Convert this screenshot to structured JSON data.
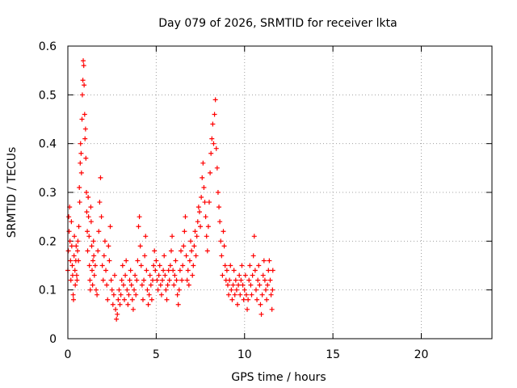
{
  "chart_data": {
    "type": "scatter",
    "title": "Day 079 of 2026, SRMTID for receiver lkta",
    "xlabel": "GPS time / hours",
    "ylabel": "SRMTID / TECUs",
    "xlim": [
      0,
      24
    ],
    "ylim": [
      0,
      0.6
    ],
    "xticks": [
      0,
      5,
      10,
      15,
      20
    ],
    "xtick_labels": [
      "0",
      "5",
      "10",
      "15",
      "20"
    ],
    "yticks": [
      0,
      0.1,
      0.2,
      0.3,
      0.4,
      0.5,
      0.6
    ],
    "ytick_labels": [
      "0",
      "0.1",
      "0.2",
      "0.3",
      "0.4",
      "0.5",
      "0.6"
    ],
    "grid": true,
    "marker": "+",
    "series": [
      {
        "name": "SRMTID",
        "color": "#ff0000",
        "points": [
          [
            0.0,
            0.14
          ],
          [
            0.03,
            0.18
          ],
          [
            0.05,
            0.25
          ],
          [
            0.07,
            0.22
          ],
          [
            0.1,
            0.27
          ],
          [
            0.12,
            0.2
          ],
          [
            0.15,
            0.16
          ],
          [
            0.17,
            0.12
          ],
          [
            0.2,
            0.24
          ],
          [
            0.22,
            0.19
          ],
          [
            0.25,
            0.15
          ],
          [
            0.27,
            0.13
          ],
          [
            0.3,
            0.09
          ],
          [
            0.32,
            0.08
          ],
          [
            0.35,
            0.17
          ],
          [
            0.37,
            0.21
          ],
          [
            0.4,
            0.14
          ],
          [
            0.42,
            0.11
          ],
          [
            0.45,
            0.16
          ],
          [
            0.47,
            0.19
          ],
          [
            0.5,
            0.13
          ],
          [
            0.52,
            0.12
          ],
          [
            0.55,
            0.18
          ],
          [
            0.57,
            0.2
          ],
          [
            0.6,
            0.16
          ],
          [
            0.62,
            0.23
          ],
          [
            0.65,
            0.31
          ],
          [
            0.67,
            0.28
          ],
          [
            0.7,
            0.36
          ],
          [
            0.72,
            0.4
          ],
          [
            0.75,
            0.38
          ],
          [
            0.77,
            0.34
          ],
          [
            0.8,
            0.45
          ],
          [
            0.82,
            0.5
          ],
          [
            0.85,
            0.53
          ],
          [
            0.87,
            0.57
          ],
          [
            0.9,
            0.56
          ],
          [
            0.92,
            0.52
          ],
          [
            0.95,
            0.46
          ],
          [
            0.97,
            0.41
          ],
          [
            1.0,
            0.43
          ],
          [
            1.02,
            0.37
          ],
          [
            1.05,
            0.3
          ],
          [
            1.07,
            0.26
          ],
          [
            1.1,
            0.22
          ],
          [
            1.12,
            0.18
          ],
          [
            1.15,
            0.29
          ],
          [
            1.17,
            0.25
          ],
          [
            1.2,
            0.21
          ],
          [
            1.22,
            0.15
          ],
          [
            1.25,
            0.12
          ],
          [
            1.27,
            0.1
          ],
          [
            1.3,
            0.27
          ],
          [
            1.32,
            0.24
          ],
          [
            1.35,
            0.19
          ],
          [
            1.37,
            0.14
          ],
          [
            1.4,
            0.11
          ],
          [
            1.42,
            0.16
          ],
          [
            1.45,
            0.2
          ],
          [
            1.47,
            0.17
          ],
          [
            1.5,
            0.13
          ],
          [
            1.55,
            0.15
          ],
          [
            1.6,
            0.1
          ],
          [
            1.65,
            0.09
          ],
          [
            1.7,
            0.18
          ],
          [
            1.75,
            0.22
          ],
          [
            1.8,
            0.28
          ],
          [
            1.85,
            0.33
          ],
          [
            1.9,
            0.25
          ],
          [
            1.95,
            0.15
          ],
          [
            2.0,
            0.12
          ],
          [
            2.05,
            0.17
          ],
          [
            2.1,
            0.2
          ],
          [
            2.15,
            0.14
          ],
          [
            2.2,
            0.11
          ],
          [
            2.25,
            0.08
          ],
          [
            2.3,
            0.19
          ],
          [
            2.35,
            0.16
          ],
          [
            2.4,
            0.23
          ],
          [
            2.45,
            0.12
          ],
          [
            2.5,
            0.1
          ],
          [
            2.55,
            0.07
          ],
          [
            2.6,
            0.09
          ],
          [
            2.65,
            0.13
          ],
          [
            2.7,
            0.06
          ],
          [
            2.75,
            0.04
          ],
          [
            2.8,
            0.05
          ],
          [
            2.85,
            0.08
          ],
          [
            2.9,
            0.1
          ],
          [
            2.95,
            0.07
          ],
          [
            3.0,
            0.09
          ],
          [
            3.05,
            0.12
          ],
          [
            3.1,
            0.15
          ],
          [
            3.15,
            0.11
          ],
          [
            3.2,
            0.08
          ],
          [
            3.25,
            0.13
          ],
          [
            3.3,
            0.16
          ],
          [
            3.35,
            0.1
          ],
          [
            3.4,
            0.07
          ],
          [
            3.45,
            0.09
          ],
          [
            3.5,
            0.12
          ],
          [
            3.55,
            0.14
          ],
          [
            3.6,
            0.11
          ],
          [
            3.65,
            0.08
          ],
          [
            3.7,
            0.06
          ],
          [
            3.75,
            0.1
          ],
          [
            3.8,
            0.13
          ],
          [
            3.85,
            0.09
          ],
          [
            3.9,
            0.12
          ],
          [
            3.95,
            0.16
          ],
          [
            4.0,
            0.23
          ],
          [
            4.05,
            0.25
          ],
          [
            4.1,
            0.19
          ],
          [
            4.15,
            0.15
          ],
          [
            4.2,
            0.11
          ],
          [
            4.25,
            0.08
          ],
          [
            4.3,
            0.12
          ],
          [
            4.35,
            0.17
          ],
          [
            4.4,
            0.21
          ],
          [
            4.45,
            0.14
          ],
          [
            4.5,
            0.1
          ],
          [
            4.55,
            0.07
          ],
          [
            4.6,
            0.09
          ],
          [
            4.65,
            0.13
          ],
          [
            4.7,
            0.11
          ],
          [
            4.75,
            0.08
          ],
          [
            4.8,
            0.12
          ],
          [
            4.85,
            0.15
          ],
          [
            4.9,
            0.18
          ],
          [
            4.95,
            0.14
          ],
          [
            5.0,
            0.16
          ],
          [
            5.05,
            0.12
          ],
          [
            5.1,
            0.1
          ],
          [
            5.15,
            0.13
          ],
          [
            5.2,
            0.15
          ],
          [
            5.25,
            0.11
          ],
          [
            5.3,
            0.09
          ],
          [
            5.35,
            0.12
          ],
          [
            5.4,
            0.14
          ],
          [
            5.45,
            0.17
          ],
          [
            5.5,
            0.13
          ],
          [
            5.55,
            0.1
          ],
          [
            5.6,
            0.08
          ],
          [
            5.65,
            0.11
          ],
          [
            5.7,
            0.14
          ],
          [
            5.75,
            0.12
          ],
          [
            5.8,
            0.15
          ],
          [
            5.85,
            0.18
          ],
          [
            5.9,
            0.21
          ],
          [
            5.95,
            0.14
          ],
          [
            6.0,
            0.11
          ],
          [
            6.05,
            0.13
          ],
          [
            6.1,
            0.16
          ],
          [
            6.15,
            0.12
          ],
          [
            6.2,
            0.09
          ],
          [
            6.25,
            0.07
          ],
          [
            6.3,
            0.1
          ],
          [
            6.35,
            0.14
          ],
          [
            6.4,
            0.18
          ],
          [
            6.45,
            0.12
          ],
          [
            6.5,
            0.15
          ],
          [
            6.55,
            0.19
          ],
          [
            6.6,
            0.22
          ],
          [
            6.65,
            0.25
          ],
          [
            6.7,
            0.17
          ],
          [
            6.75,
            0.12
          ],
          [
            6.8,
            0.14
          ],
          [
            6.85,
            0.11
          ],
          [
            6.9,
            0.16
          ],
          [
            6.95,
            0.2
          ],
          [
            7.0,
            0.18
          ],
          [
            7.05,
            0.13
          ],
          [
            7.1,
            0.15
          ],
          [
            7.15,
            0.19
          ],
          [
            7.2,
            0.22
          ],
          [
            7.25,
            0.17
          ],
          [
            7.3,
            0.21
          ],
          [
            7.35,
            0.24
          ],
          [
            7.4,
            0.27
          ],
          [
            7.45,
            0.26
          ],
          [
            7.5,
            0.23
          ],
          [
            7.55,
            0.29
          ],
          [
            7.6,
            0.33
          ],
          [
            7.65,
            0.36
          ],
          [
            7.7,
            0.31
          ],
          [
            7.75,
            0.28
          ],
          [
            7.8,
            0.25
          ],
          [
            7.85,
            0.21
          ],
          [
            7.9,
            0.18
          ],
          [
            7.95,
            0.23
          ],
          [
            8.0,
            0.28
          ],
          [
            8.05,
            0.34
          ],
          [
            8.1,
            0.38
          ],
          [
            8.15,
            0.41
          ],
          [
            8.2,
            0.44
          ],
          [
            8.25,
            0.4
          ],
          [
            8.3,
            0.46
          ],
          [
            8.35,
            0.49
          ],
          [
            8.4,
            0.39
          ],
          [
            8.45,
            0.35
          ],
          [
            8.5,
            0.3
          ],
          [
            8.55,
            0.27
          ],
          [
            8.6,
            0.24
          ],
          [
            8.65,
            0.2
          ],
          [
            8.7,
            0.17
          ],
          [
            8.75,
            0.13
          ],
          [
            8.8,
            0.22
          ],
          [
            8.85,
            0.19
          ],
          [
            8.9,
            0.15
          ],
          [
            8.95,
            0.12
          ],
          [
            9.0,
            0.14
          ],
          [
            9.05,
            0.11
          ],
          [
            9.1,
            0.09
          ],
          [
            9.15,
            0.12
          ],
          [
            9.2,
            0.15
          ],
          [
            9.25,
            0.1
          ],
          [
            9.3,
            0.08
          ],
          [
            9.35,
            0.11
          ],
          [
            9.4,
            0.14
          ],
          [
            9.45,
            0.09
          ],
          [
            9.5,
            0.12
          ],
          [
            9.55,
            0.1
          ],
          [
            9.6,
            0.07
          ],
          [
            9.65,
            0.11
          ],
          [
            9.7,
            0.13
          ],
          [
            9.75,
            0.09
          ],
          [
            9.8,
            0.12
          ],
          [
            9.85,
            0.15
          ],
          [
            9.9,
            0.11
          ],
          [
            9.95,
            0.08
          ],
          [
            10.0,
            0.1
          ],
          [
            10.05,
            0.13
          ],
          [
            10.1,
            0.09
          ],
          [
            10.15,
            0.06
          ],
          [
            10.2,
            0.08
          ],
          [
            10.25,
            0.12
          ],
          [
            10.3,
            0.15
          ],
          [
            10.35,
            0.11
          ],
          [
            10.4,
            0.09
          ],
          [
            10.45,
            0.13
          ],
          [
            10.5,
            0.17
          ],
          [
            10.55,
            0.21
          ],
          [
            10.6,
            0.14
          ],
          [
            10.65,
            0.1
          ],
          [
            10.7,
            0.08
          ],
          [
            10.75,
            0.12
          ],
          [
            10.8,
            0.15
          ],
          [
            10.85,
            0.11
          ],
          [
            10.9,
            0.07
          ],
          [
            10.95,
            0.05
          ],
          [
            11.0,
            0.09
          ],
          [
            11.05,
            0.13
          ],
          [
            11.1,
            0.16
          ],
          [
            11.15,
            0.12
          ],
          [
            11.2,
            0.1
          ],
          [
            11.25,
            0.08
          ],
          [
            11.3,
            0.11
          ],
          [
            11.35,
            0.14
          ],
          [
            11.4,
            0.16
          ],
          [
            11.45,
            0.12
          ],
          [
            11.5,
            0.09
          ],
          [
            11.55,
            0.06
          ],
          [
            11.58,
            0.1
          ],
          [
            11.6,
            0.14
          ]
        ]
      }
    ]
  }
}
